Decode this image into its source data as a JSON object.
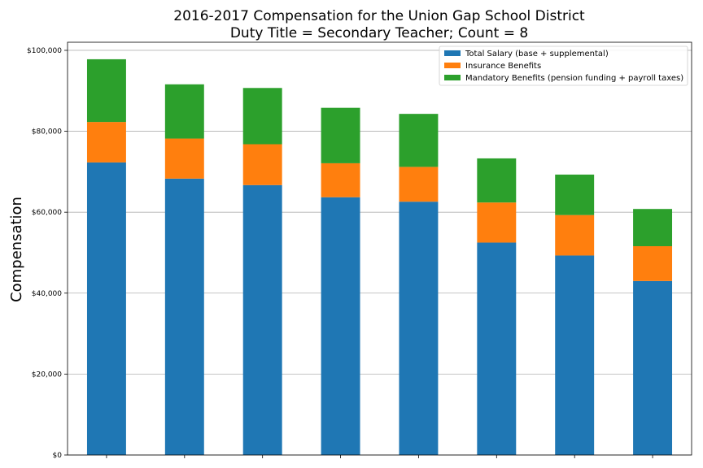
{
  "chart_data": {
    "type": "bar",
    "stacked": true,
    "title": "2016-2017 Compensation for the Union Gap School District",
    "subtitle": "Duty Title = Secondary Teacher; Count = 8",
    "xlabel": "",
    "ylabel": "Compensation",
    "ylim": [
      0,
      102000
    ],
    "yticks": [
      0,
      20000,
      40000,
      60000,
      80000,
      100000
    ],
    "ytick_labels": [
      "$0",
      "$20,000",
      "$40,000",
      "$60,000",
      "$80,000",
      "$100,000"
    ],
    "grid": "horizontal",
    "legend_position": "top-right",
    "categories": [
      "",
      "",
      "",
      "",
      "",
      "",
      "",
      ""
    ],
    "series": [
      {
        "name": "Total Salary (base + supplemental)",
        "color": "#1f77b4",
        "values": [
          72300,
          68300,
          66700,
          63700,
          62600,
          52500,
          49300,
          43000
        ]
      },
      {
        "name": "Insurance Benefits",
        "color": "#ff7f0e",
        "values": [
          10000,
          9900,
          10100,
          8400,
          8600,
          9900,
          10000,
          8600
        ]
      },
      {
        "name": "Mandatory Benefits (pension funding + payroll taxes)",
        "color": "#2ca02c",
        "values": [
          15500,
          13400,
          13900,
          13700,
          13100,
          10900,
          10000,
          9200
        ]
      }
    ]
  }
}
